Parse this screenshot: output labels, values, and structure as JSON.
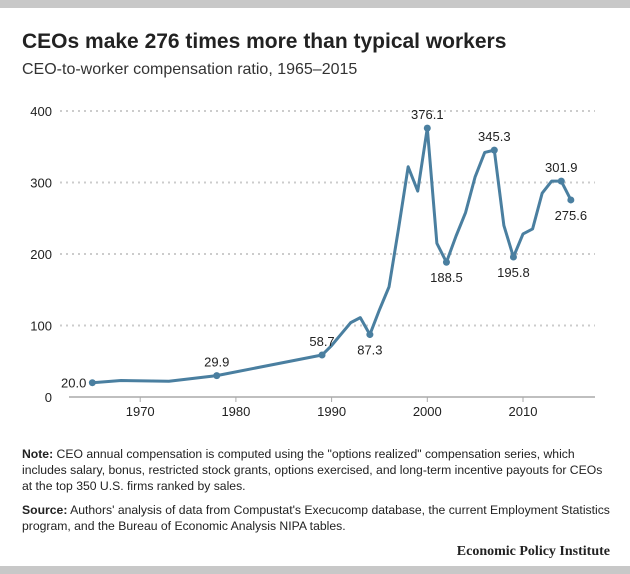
{
  "title": "CEOs make 276 times more than typical workers",
  "subtitle": "CEO-to-worker compensation ratio, 1965–2015",
  "chart_data": {
    "type": "line",
    "title": "CEOs make 276 times more than typical workers",
    "subtitle": "CEO-to-worker compensation ratio, 1965–2015",
    "xlim": [
      1963,
      2018
    ],
    "ylim": [
      0,
      400
    ],
    "xticks": [
      1970,
      1980,
      1990,
      2000,
      2010
    ],
    "yticks": [
      0,
      100,
      200,
      300,
      400
    ],
    "grid": "horizontal dotted",
    "color": "#4a7fa0",
    "x": [
      1965,
      1968,
      1973,
      1978,
      1989,
      1990,
      1991,
      1992,
      1993,
      1994,
      1995,
      1996,
      1997,
      1998,
      1999,
      2000,
      2001,
      2002,
      2003,
      2004,
      2005,
      2006,
      2007,
      2008,
      2009,
      2010,
      2011,
      2012,
      2013,
      2014,
      2015
    ],
    "y": [
      20.0,
      23,
      22,
      29.9,
      58.7,
      72,
      88,
      104,
      111,
      87.3,
      122,
      154,
      236,
      322,
      288,
      376.1,
      215,
      188.5,
      225,
      258,
      308,
      342,
      345.3,
      240,
      195.8,
      228,
      235,
      285,
      302,
      301.9,
      275.6
    ],
    "markers": [
      1965,
      1978,
      1989,
      1994,
      2000,
      2002,
      2007,
      2009,
      2014,
      2015
    ],
    "labels": [
      {
        "x": 1965,
        "y": 20.0,
        "text": "20.0",
        "pos": "left"
      },
      {
        "x": 1978,
        "y": 29.9,
        "text": "29.9",
        "pos": "above"
      },
      {
        "x": 1989,
        "y": 58.7,
        "text": "58.7",
        "pos": "above"
      },
      {
        "x": 1994,
        "y": 87.3,
        "text": "87.3",
        "pos": "below"
      },
      {
        "x": 2000,
        "y": 376.1,
        "text": "376.1",
        "pos": "above"
      },
      {
        "x": 2002,
        "y": 188.5,
        "text": "188.5",
        "pos": "below"
      },
      {
        "x": 2007,
        "y": 345.3,
        "text": "345.3",
        "pos": "above"
      },
      {
        "x": 2009,
        "y": 195.8,
        "text": "195.8",
        "pos": "below"
      },
      {
        "x": 2014,
        "y": 301.9,
        "text": "301.9",
        "pos": "above"
      },
      {
        "x": 2015,
        "y": 275.6,
        "text": "275.6",
        "pos": "below"
      }
    ]
  },
  "notes": {
    "note_label": "Note:",
    "note_text": " CEO annual compensation is computed using the \"options realized\" compensation series, which includes salary, bonus, restricted stock grants, options exercised, and long-term incentive payouts for CEOs at the top 350 U.S. firms ranked by sales.",
    "source_label": "Source:",
    "source_text": " Authors' analysis of data from Compustat's Execucomp database, the current Employment Statistics program, and the Bureau of Economic Analysis NIPA tables."
  },
  "logo": "Economic Policy Institute"
}
